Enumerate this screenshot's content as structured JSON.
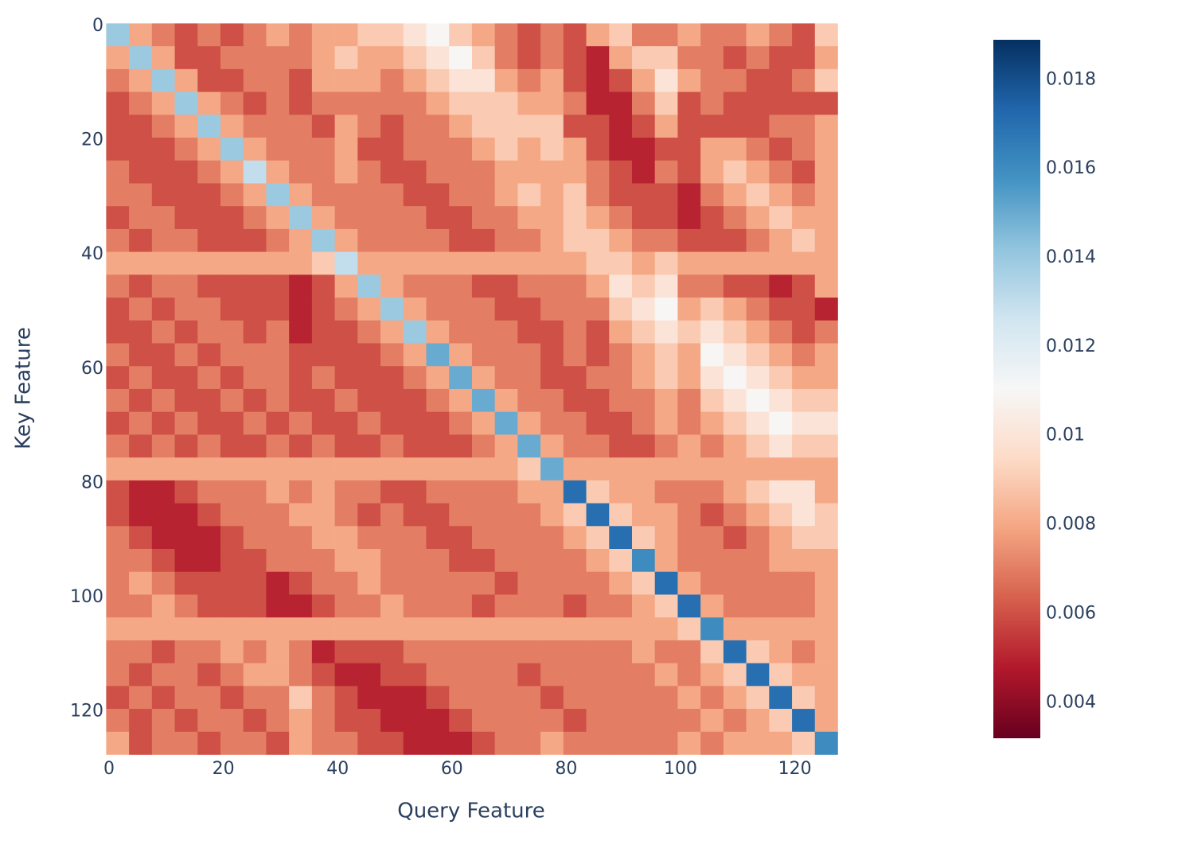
{
  "chart_data": {
    "type": "heatmap",
    "xlabel": "Query Feature",
    "ylabel": "Key Feature",
    "x": [
      1.5,
      5.5,
      9.5,
      13.5,
      17.5,
      21.5,
      25.5,
      29.5,
      33.5,
      37.5,
      41.5,
      45.5,
      49.5,
      53.5,
      57.5,
      61.5,
      65.5,
      69.5,
      73.5,
      77.5,
      81.5,
      85.5,
      89.5,
      93.5,
      97.5,
      101.5,
      105.5,
      109.5,
      113.5,
      117.5,
      121.5,
      125.5
    ],
    "y": [
      1.5,
      5.5,
      9.5,
      13.5,
      17.5,
      21.5,
      25.5,
      29.5,
      33.5,
      37.5,
      41.5,
      45.5,
      49.5,
      53.5,
      57.5,
      61.5,
      65.5,
      69.5,
      73.5,
      77.5,
      81.5,
      85.5,
      89.5,
      93.5,
      97.5,
      101.5,
      105.5,
      109.5,
      113.5,
      117.5,
      121.5,
      125.5
    ],
    "xlim": [
      -0.5,
      127.5
    ],
    "ylim": [
      -0.5,
      127.5
    ],
    "y_reversed": true,
    "xticks": [
      0,
      20,
      40,
      60,
      80,
      100,
      120
    ],
    "yticks": [
      0,
      20,
      40,
      60,
      80,
      100,
      120
    ],
    "zlim": [
      0.0032,
      0.0189
    ],
    "zticks": [
      0.004,
      0.006,
      0.008,
      0.01,
      0.012,
      0.014,
      0.016,
      0.018
    ],
    "colorscale": [
      "#67001f",
      "#b2182b",
      "#d6604d",
      "#f4a582",
      "#fddbc7",
      "#f7f7f7",
      "#d1e5f0",
      "#92c5de",
      "#4393c3",
      "#2166ac",
      "#053061"
    ],
    "z": [
      [
        0.014,
        0.008,
        0.007,
        0.006,
        0.007,
        0.006,
        0.007,
        0.008,
        0.007,
        0.008,
        0.008,
        0.009,
        0.009,
        0.01,
        0.011,
        0.009,
        0.008,
        0.007,
        0.006,
        0.007,
        0.006,
        0.008,
        0.009,
        0.007,
        0.007,
        0.008,
        0.007,
        0.007,
        0.008,
        0.007,
        0.006,
        0.009
      ],
      [
        0.008,
        0.014,
        0.008,
        0.006,
        0.006,
        0.007,
        0.007,
        0.007,
        0.007,
        0.008,
        0.009,
        0.008,
        0.008,
        0.009,
        0.01,
        0.011,
        0.009,
        0.007,
        0.006,
        0.007,
        0.006,
        0.005,
        0.008,
        0.009,
        0.009,
        0.007,
        0.007,
        0.006,
        0.007,
        0.006,
        0.006,
        0.008
      ],
      [
        0.007,
        0.008,
        0.014,
        0.008,
        0.006,
        0.006,
        0.007,
        0.007,
        0.006,
        0.008,
        0.008,
        0.008,
        0.007,
        0.008,
        0.009,
        0.01,
        0.01,
        0.008,
        0.007,
        0.008,
        0.006,
        0.005,
        0.006,
        0.008,
        0.01,
        0.008,
        0.007,
        0.007,
        0.006,
        0.006,
        0.007,
        0.009
      ],
      [
        0.006,
        0.007,
        0.008,
        0.014,
        0.008,
        0.007,
        0.006,
        0.007,
        0.006,
        0.007,
        0.007,
        0.007,
        0.007,
        0.007,
        0.008,
        0.009,
        0.009,
        0.009,
        0.008,
        0.008,
        0.007,
        0.005,
        0.005,
        0.007,
        0.009,
        0.006,
        0.007,
        0.006,
        0.006,
        0.006,
        0.006,
        0.006
      ],
      [
        0.006,
        0.006,
        0.007,
        0.008,
        0.014,
        0.008,
        0.007,
        0.007,
        0.007,
        0.006,
        0.008,
        0.007,
        0.006,
        0.007,
        0.007,
        0.008,
        0.009,
        0.009,
        0.009,
        0.009,
        0.006,
        0.006,
        0.005,
        0.006,
        0.008,
        0.006,
        0.006,
        0.006,
        0.006,
        0.007,
        0.007,
        0.008
      ],
      [
        0.006,
        0.006,
        0.006,
        0.007,
        0.008,
        0.014,
        0.008,
        0.007,
        0.007,
        0.007,
        0.008,
        0.006,
        0.006,
        0.007,
        0.007,
        0.007,
        0.008,
        0.009,
        0.008,
        0.009,
        0.008,
        0.006,
        0.005,
        0.005,
        0.006,
        0.006,
        0.008,
        0.008,
        0.007,
        0.006,
        0.007,
        0.008
      ],
      [
        0.007,
        0.006,
        0.006,
        0.006,
        0.007,
        0.008,
        0.013,
        0.008,
        0.007,
        0.007,
        0.008,
        0.007,
        0.006,
        0.006,
        0.007,
        0.007,
        0.007,
        0.008,
        0.008,
        0.008,
        0.008,
        0.007,
        0.006,
        0.005,
        0.007,
        0.006,
        0.008,
        0.009,
        0.008,
        0.007,
        0.006,
        0.008
      ],
      [
        0.007,
        0.007,
        0.006,
        0.006,
        0.006,
        0.007,
        0.008,
        0.014,
        0.008,
        0.007,
        0.007,
        0.007,
        0.007,
        0.006,
        0.006,
        0.007,
        0.007,
        0.008,
        0.009,
        0.008,
        0.009,
        0.007,
        0.006,
        0.006,
        0.006,
        0.005,
        0.007,
        0.008,
        0.009,
        0.008,
        0.007,
        0.008
      ],
      [
        0.006,
        0.007,
        0.007,
        0.006,
        0.006,
        0.006,
        0.007,
        0.008,
        0.014,
        0.008,
        0.007,
        0.007,
        0.007,
        0.007,
        0.006,
        0.006,
        0.007,
        0.007,
        0.008,
        0.008,
        0.009,
        0.008,
        0.007,
        0.006,
        0.006,
        0.005,
        0.006,
        0.007,
        0.008,
        0.009,
        0.008,
        0.008
      ],
      [
        0.007,
        0.006,
        0.007,
        0.007,
        0.006,
        0.006,
        0.006,
        0.007,
        0.008,
        0.014,
        0.008,
        0.007,
        0.007,
        0.007,
        0.007,
        0.006,
        0.006,
        0.007,
        0.007,
        0.008,
        0.009,
        0.009,
        0.008,
        0.007,
        0.007,
        0.006,
        0.006,
        0.006,
        0.007,
        0.008,
        0.009,
        0.008
      ],
      [
        0.008,
        0.008,
        0.008,
        0.008,
        0.008,
        0.008,
        0.008,
        0.008,
        0.008,
        0.009,
        0.013,
        0.008,
        0.008,
        0.008,
        0.008,
        0.008,
        0.008,
        0.008,
        0.008,
        0.008,
        0.008,
        0.009,
        0.009,
        0.008,
        0.009,
        0.008,
        0.008,
        0.008,
        0.008,
        0.008,
        0.008,
        0.008
      ],
      [
        0.007,
        0.006,
        0.007,
        0.007,
        0.006,
        0.006,
        0.006,
        0.006,
        0.005,
        0.006,
        0.008,
        0.014,
        0.008,
        0.007,
        0.007,
        0.007,
        0.006,
        0.006,
        0.007,
        0.007,
        0.007,
        0.008,
        0.01,
        0.009,
        0.01,
        0.007,
        0.007,
        0.006,
        0.006,
        0.005,
        0.006,
        0.008
      ],
      [
        0.006,
        0.007,
        0.006,
        0.007,
        0.007,
        0.006,
        0.006,
        0.006,
        0.005,
        0.006,
        0.007,
        0.008,
        0.014,
        0.008,
        0.007,
        0.007,
        0.007,
        0.006,
        0.006,
        0.007,
        0.007,
        0.007,
        0.009,
        0.01,
        0.011,
        0.008,
        0.009,
        0.008,
        0.007,
        0.006,
        0.006,
        0.005
      ],
      [
        0.006,
        0.006,
        0.007,
        0.006,
        0.007,
        0.007,
        0.006,
        0.007,
        0.005,
        0.006,
        0.006,
        0.007,
        0.008,
        0.014,
        0.008,
        0.007,
        0.007,
        0.007,
        0.006,
        0.006,
        0.007,
        0.006,
        0.008,
        0.009,
        0.01,
        0.009,
        0.01,
        0.009,
        0.008,
        0.007,
        0.006,
        0.007
      ],
      [
        0.007,
        0.006,
        0.006,
        0.007,
        0.006,
        0.007,
        0.007,
        0.007,
        0.006,
        0.006,
        0.006,
        0.006,
        0.007,
        0.008,
        0.015,
        0.008,
        0.007,
        0.007,
        0.007,
        0.006,
        0.007,
        0.006,
        0.007,
        0.008,
        0.009,
        0.008,
        0.011,
        0.01,
        0.009,
        0.008,
        0.007,
        0.008
      ],
      [
        0.006,
        0.007,
        0.006,
        0.006,
        0.007,
        0.006,
        0.007,
        0.007,
        0.006,
        0.007,
        0.006,
        0.006,
        0.006,
        0.007,
        0.008,
        0.015,
        0.008,
        0.007,
        0.007,
        0.006,
        0.006,
        0.007,
        0.007,
        0.008,
        0.009,
        0.008,
        0.01,
        0.011,
        0.01,
        0.009,
        0.008,
        0.008
      ],
      [
        0.007,
        0.006,
        0.007,
        0.006,
        0.006,
        0.007,
        0.006,
        0.007,
        0.006,
        0.006,
        0.007,
        0.006,
        0.006,
        0.006,
        0.007,
        0.008,
        0.015,
        0.008,
        0.007,
        0.007,
        0.006,
        0.006,
        0.007,
        0.007,
        0.008,
        0.007,
        0.009,
        0.01,
        0.011,
        0.01,
        0.009,
        0.009
      ],
      [
        0.006,
        0.007,
        0.006,
        0.007,
        0.006,
        0.006,
        0.007,
        0.006,
        0.007,
        0.006,
        0.006,
        0.007,
        0.006,
        0.006,
        0.006,
        0.007,
        0.008,
        0.015,
        0.008,
        0.007,
        0.007,
        0.006,
        0.006,
        0.007,
        0.008,
        0.007,
        0.008,
        0.009,
        0.01,
        0.011,
        0.01,
        0.01
      ],
      [
        0.007,
        0.006,
        0.007,
        0.006,
        0.007,
        0.006,
        0.006,
        0.007,
        0.006,
        0.007,
        0.006,
        0.006,
        0.007,
        0.006,
        0.006,
        0.006,
        0.007,
        0.008,
        0.015,
        0.008,
        0.007,
        0.007,
        0.006,
        0.006,
        0.007,
        0.008,
        0.007,
        0.008,
        0.009,
        0.01,
        0.009,
        0.009
      ],
      [
        0.008,
        0.008,
        0.008,
        0.008,
        0.008,
        0.008,
        0.008,
        0.008,
        0.008,
        0.008,
        0.008,
        0.008,
        0.008,
        0.008,
        0.008,
        0.008,
        0.008,
        0.008,
        0.009,
        0.015,
        0.008,
        0.008,
        0.008,
        0.008,
        0.008,
        0.008,
        0.008,
        0.008,
        0.008,
        0.008,
        0.008,
        0.008
      ],
      [
        0.006,
        0.005,
        0.005,
        0.006,
        0.007,
        0.007,
        0.007,
        0.008,
        0.007,
        0.008,
        0.007,
        0.007,
        0.006,
        0.006,
        0.007,
        0.007,
        0.007,
        0.007,
        0.008,
        0.008,
        0.017,
        0.009,
        0.008,
        0.008,
        0.007,
        0.007,
        0.007,
        0.008,
        0.009,
        0.01,
        0.01,
        0.008
      ],
      [
        0.006,
        0.005,
        0.005,
        0.005,
        0.006,
        0.007,
        0.007,
        0.007,
        0.008,
        0.008,
        0.007,
        0.006,
        0.007,
        0.006,
        0.006,
        0.007,
        0.007,
        0.007,
        0.007,
        0.008,
        0.009,
        0.017,
        0.009,
        0.008,
        0.008,
        0.007,
        0.006,
        0.007,
        0.008,
        0.009,
        0.01,
        0.009
      ],
      [
        0.007,
        0.006,
        0.005,
        0.005,
        0.005,
        0.006,
        0.007,
        0.007,
        0.007,
        0.008,
        0.008,
        0.007,
        0.007,
        0.007,
        0.006,
        0.006,
        0.007,
        0.007,
        0.007,
        0.007,
        0.008,
        0.009,
        0.017,
        0.009,
        0.008,
        0.007,
        0.007,
        0.006,
        0.007,
        0.008,
        0.009,
        0.009
      ],
      [
        0.007,
        0.007,
        0.006,
        0.005,
        0.005,
        0.006,
        0.006,
        0.007,
        0.007,
        0.007,
        0.008,
        0.008,
        0.007,
        0.007,
        0.007,
        0.006,
        0.006,
        0.007,
        0.007,
        0.007,
        0.007,
        0.008,
        0.009,
        0.016,
        0.008,
        0.007,
        0.007,
        0.007,
        0.007,
        0.008,
        0.008,
        0.008
      ],
      [
        0.007,
        0.008,
        0.007,
        0.006,
        0.006,
        0.006,
        0.006,
        0.005,
        0.006,
        0.007,
        0.007,
        0.008,
        0.007,
        0.007,
        0.007,
        0.007,
        0.007,
        0.006,
        0.007,
        0.007,
        0.007,
        0.007,
        0.008,
        0.009,
        0.017,
        0.008,
        0.007,
        0.007,
        0.007,
        0.007,
        0.007,
        0.008
      ],
      [
        0.007,
        0.007,
        0.008,
        0.007,
        0.006,
        0.006,
        0.006,
        0.005,
        0.005,
        0.006,
        0.007,
        0.007,
        0.008,
        0.007,
        0.007,
        0.007,
        0.006,
        0.007,
        0.007,
        0.007,
        0.006,
        0.007,
        0.007,
        0.008,
        0.009,
        0.017,
        0.008,
        0.007,
        0.007,
        0.007,
        0.007,
        0.008
      ],
      [
        0.008,
        0.008,
        0.008,
        0.008,
        0.008,
        0.008,
        0.008,
        0.008,
        0.008,
        0.008,
        0.008,
        0.008,
        0.008,
        0.008,
        0.008,
        0.008,
        0.008,
        0.008,
        0.008,
        0.008,
        0.008,
        0.008,
        0.008,
        0.008,
        0.008,
        0.009,
        0.016,
        0.008,
        0.008,
        0.008,
        0.008,
        0.008
      ],
      [
        0.007,
        0.007,
        0.006,
        0.007,
        0.007,
        0.008,
        0.007,
        0.008,
        0.007,
        0.005,
        0.006,
        0.006,
        0.006,
        0.007,
        0.007,
        0.007,
        0.007,
        0.007,
        0.007,
        0.007,
        0.007,
        0.007,
        0.007,
        0.008,
        0.007,
        0.007,
        0.009,
        0.017,
        0.009,
        0.008,
        0.007,
        0.008
      ],
      [
        0.007,
        0.006,
        0.007,
        0.007,
        0.006,
        0.007,
        0.008,
        0.008,
        0.007,
        0.006,
        0.005,
        0.005,
        0.006,
        0.006,
        0.007,
        0.007,
        0.007,
        0.007,
        0.006,
        0.007,
        0.007,
        0.007,
        0.007,
        0.007,
        0.008,
        0.007,
        0.008,
        0.009,
        0.017,
        0.009,
        0.008,
        0.008
      ],
      [
        0.006,
        0.007,
        0.006,
        0.007,
        0.007,
        0.006,
        0.007,
        0.007,
        0.009,
        0.007,
        0.006,
        0.005,
        0.005,
        0.005,
        0.006,
        0.007,
        0.007,
        0.007,
        0.007,
        0.006,
        0.007,
        0.007,
        0.007,
        0.007,
        0.007,
        0.008,
        0.007,
        0.008,
        0.009,
        0.017,
        0.009,
        0.008
      ],
      [
        0.007,
        0.006,
        0.007,
        0.006,
        0.007,
        0.007,
        0.006,
        0.007,
        0.008,
        0.007,
        0.006,
        0.006,
        0.005,
        0.005,
        0.005,
        0.006,
        0.007,
        0.007,
        0.007,
        0.007,
        0.006,
        0.007,
        0.007,
        0.007,
        0.007,
        0.007,
        0.008,
        0.007,
        0.008,
        0.009,
        0.017,
        0.008
      ],
      [
        0.008,
        0.006,
        0.007,
        0.007,
        0.006,
        0.007,
        0.007,
        0.006,
        0.008,
        0.007,
        0.007,
        0.006,
        0.006,
        0.005,
        0.005,
        0.005,
        0.006,
        0.007,
        0.007,
        0.008,
        0.007,
        0.007,
        0.007,
        0.007,
        0.007,
        0.008,
        0.007,
        0.008,
        0.008,
        0.008,
        0.009,
        0.016
      ]
    ]
  }
}
